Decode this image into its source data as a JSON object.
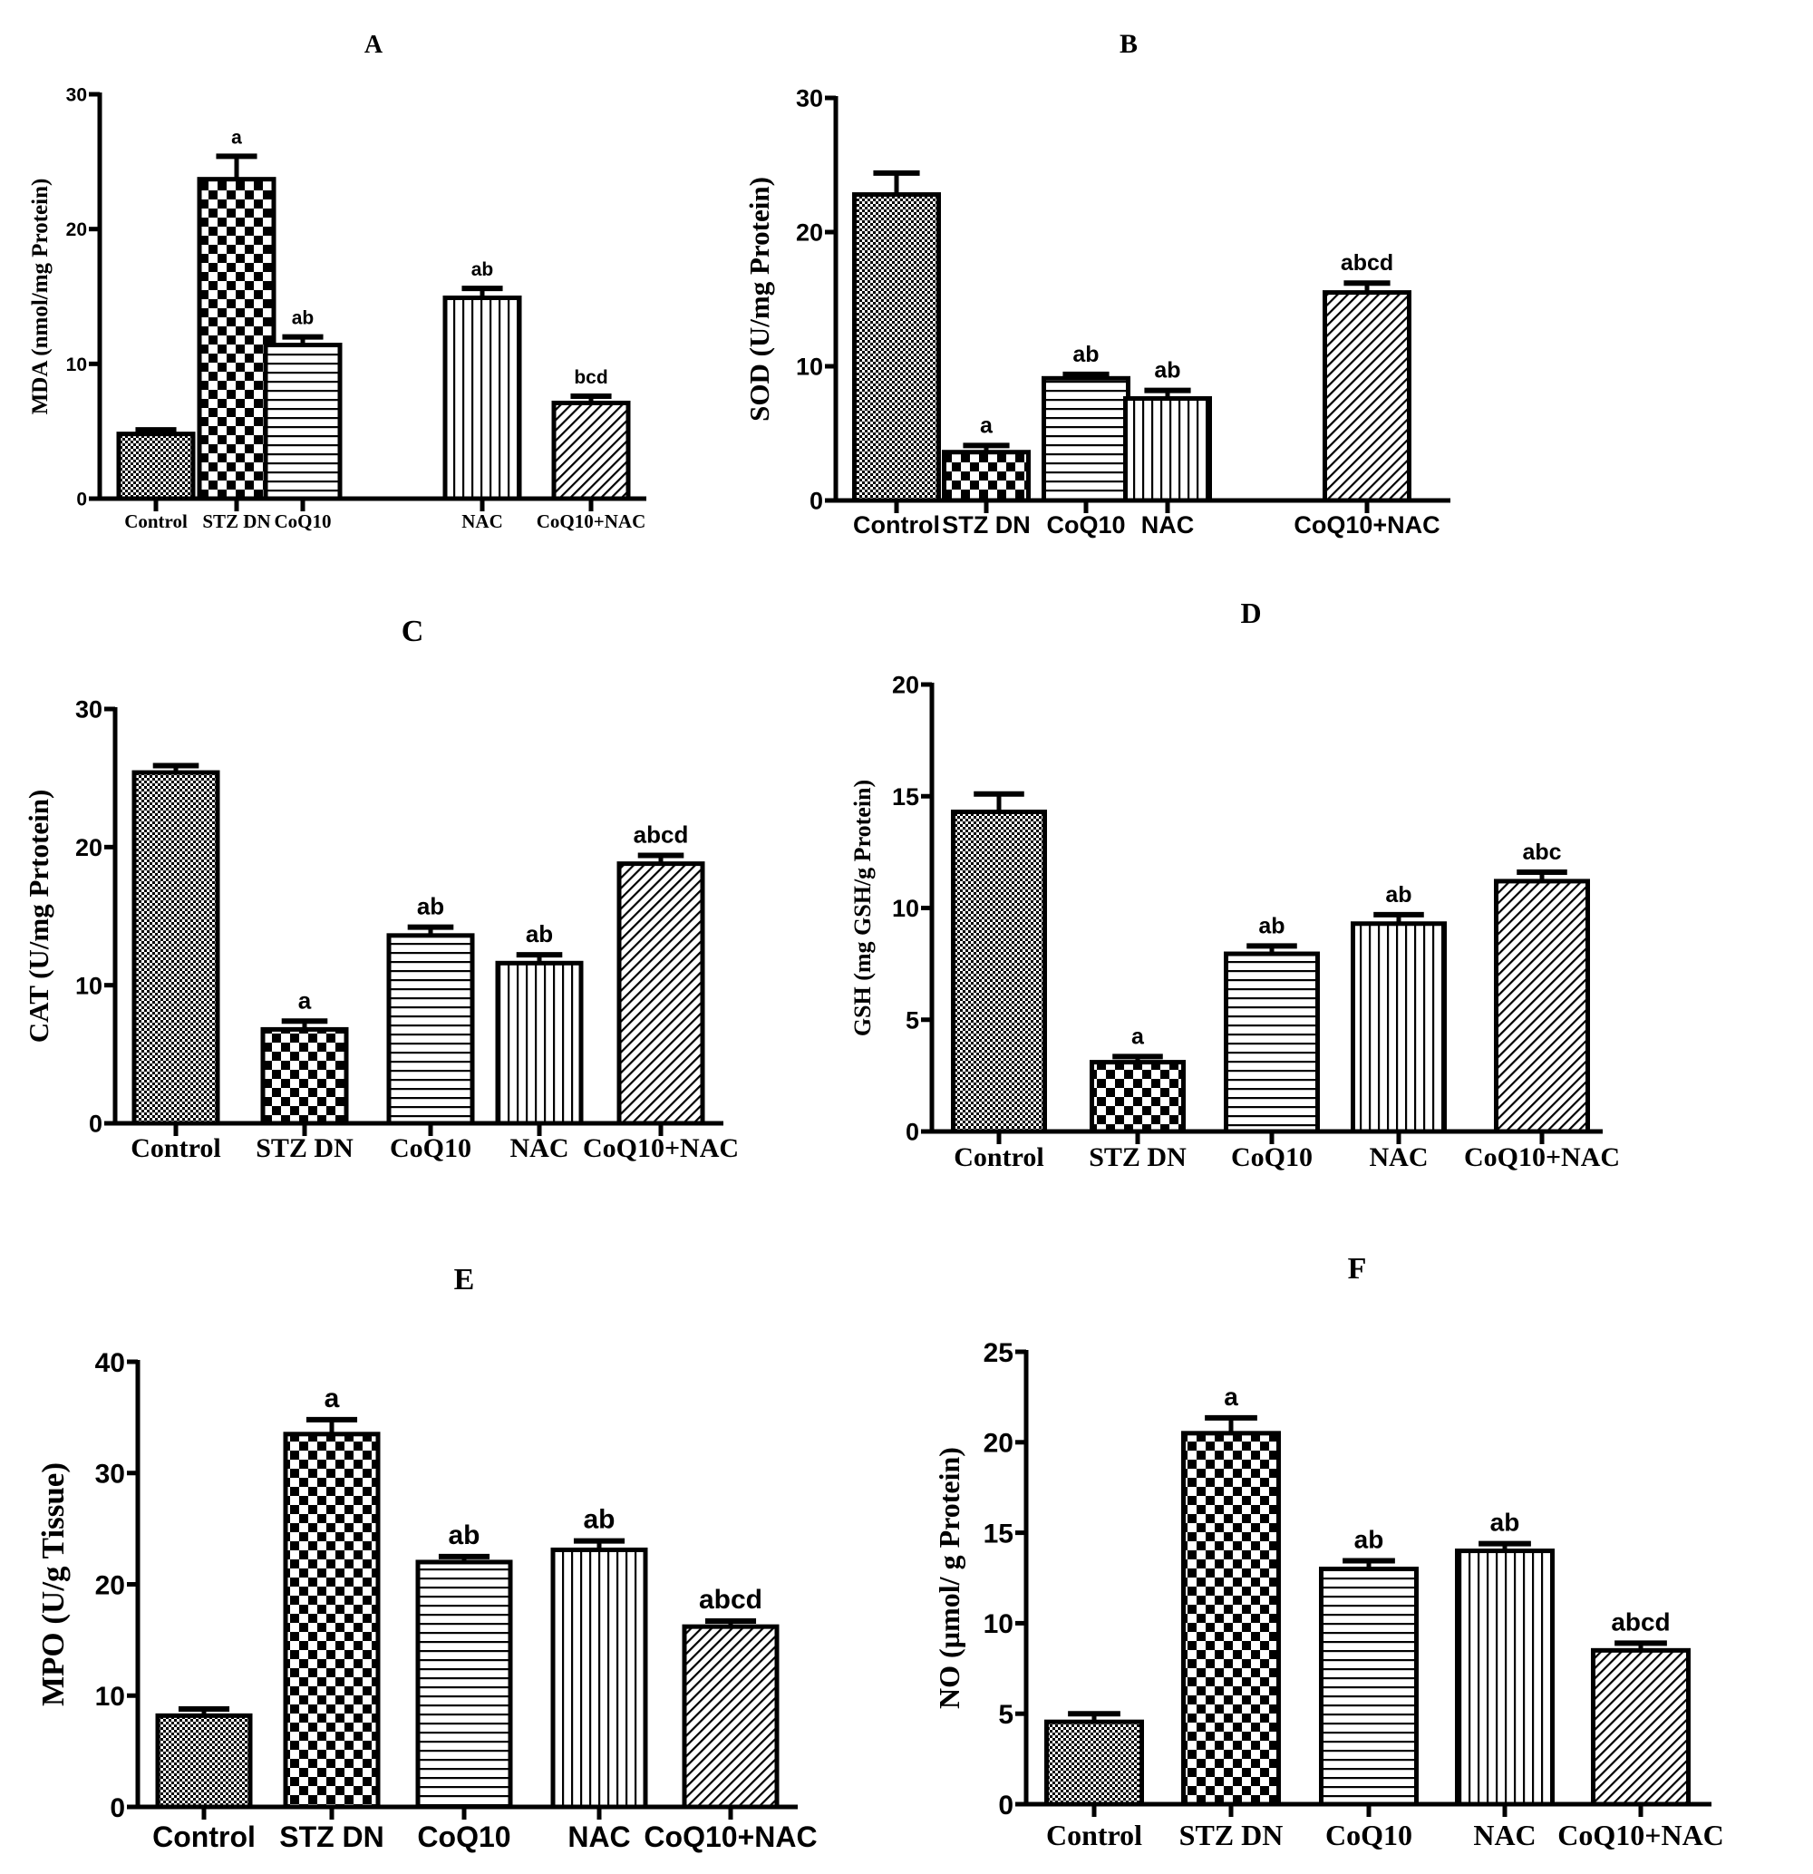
{
  "figure": {
    "groups": [
      "Control",
      "STZ DN",
      "CoQ10",
      "NAC",
      "CoQ10+NAC"
    ],
    "colors": {
      "ink": "#000000",
      "background": "#ffffff"
    },
    "patterns": [
      "fine-checker",
      "coarse-checker",
      "horizontal-lines",
      "vertical-lines",
      "diagonal-hatch"
    ]
  },
  "chart_data": [
    {
      "panel": "A",
      "type": "bar",
      "title": "A",
      "ylabel": "MDA (nmol/mg Protein)",
      "xlabel": "",
      "categories": [
        "Control",
        "STZ DN",
        "CoQ10",
        "NAC",
        "CoQ10+NAC"
      ],
      "values": [
        4.8,
        23.7,
        11.4,
        14.9,
        7.1
      ],
      "errors": [
        0.3,
        1.7,
        0.6,
        0.7,
        0.5
      ],
      "annotations": [
        "",
        "a",
        "ab",
        "ab",
        "bcd"
      ],
      "ylim": [
        0,
        30
      ],
      "yticks": [
        0,
        10,
        20,
        30
      ],
      "grid": false
    },
    {
      "panel": "B",
      "type": "bar",
      "title": "B",
      "ylabel": "SOD (U/mg Protein)",
      "xlabel": "",
      "categories": [
        "Control",
        "STZ DN",
        "CoQ10",
        "NAC",
        "CoQ10+NAC"
      ],
      "values": [
        22.8,
        3.6,
        9.1,
        7.6,
        15.5
      ],
      "errors": [
        1.6,
        0.5,
        0.3,
        0.6,
        0.7
      ],
      "annotations": [
        "",
        "a",
        "ab",
        "ab",
        "abcd"
      ],
      "ylim": [
        0,
        30
      ],
      "yticks": [
        0,
        10,
        20,
        30
      ],
      "grid": false
    },
    {
      "panel": "C",
      "type": "bar",
      "title": "C",
      "ylabel": "CAT (U/mg Prtotein)",
      "xlabel": "",
      "categories": [
        "Control",
        "STZ DN",
        "CoQ10",
        "NAC",
        "CoQ10+NAC"
      ],
      "values": [
        25.4,
        6.8,
        13.6,
        11.6,
        18.8
      ],
      "errors": [
        0.5,
        0.6,
        0.6,
        0.6,
        0.6
      ],
      "annotations": [
        "",
        "a",
        "ab",
        "ab",
        "abcd"
      ],
      "ylim": [
        0,
        30
      ],
      "yticks": [
        0,
        10,
        20,
        30
      ],
      "grid": false
    },
    {
      "panel": "D",
      "type": "bar",
      "title": "D",
      "ylabel": "GSH (mg GSH/g Protein)",
      "xlabel": "",
      "categories": [
        "Control",
        "STZ DN",
        "CoQ10",
        "NAC",
        "CoQ10+NAC"
      ],
      "values": [
        14.3,
        3.1,
        7.95,
        9.3,
        11.2
      ],
      "errors": [
        0.8,
        0.25,
        0.35,
        0.4,
        0.4
      ],
      "annotations": [
        "",
        "a",
        "ab",
        "ab",
        "abc"
      ],
      "ylim": [
        0,
        20
      ],
      "yticks": [
        0,
        5,
        10,
        15,
        20
      ],
      "grid": false
    },
    {
      "panel": "E",
      "type": "bar",
      "title": "E",
      "ylabel": "MPO (U/g Tissue)",
      "xlabel": "",
      "categories": [
        "Control",
        "STZ DN",
        "CoQ10",
        "NAC",
        "CoQ10+NAC"
      ],
      "values": [
        8.2,
        33.5,
        22.0,
        23.1,
        16.2
      ],
      "errors": [
        0.6,
        1.3,
        0.5,
        0.8,
        0.5
      ],
      "annotations": [
        "",
        "a",
        "ab",
        "ab",
        "abcd"
      ],
      "ylim": [
        0,
        40
      ],
      "yticks": [
        0,
        10,
        20,
        30,
        40
      ],
      "grid": false
    },
    {
      "panel": "F",
      "type": "bar",
      "title": "F",
      "ylabel": "NO (µmol/ g Protein)",
      "xlabel": "",
      "categories": [
        "Control",
        "STZ DN",
        "CoQ10",
        "NAC",
        "CoQ10+NAC"
      ],
      "values": [
        4.55,
        20.5,
        13.0,
        14.0,
        8.5
      ],
      "errors": [
        0.45,
        0.85,
        0.45,
        0.4,
        0.4
      ],
      "annotations": [
        "",
        "a",
        "ab",
        "ab",
        "abcd"
      ],
      "ylim": [
        0,
        25
      ],
      "yticks": [
        0,
        5,
        10,
        15,
        20,
        25
      ],
      "grid": false
    }
  ]
}
